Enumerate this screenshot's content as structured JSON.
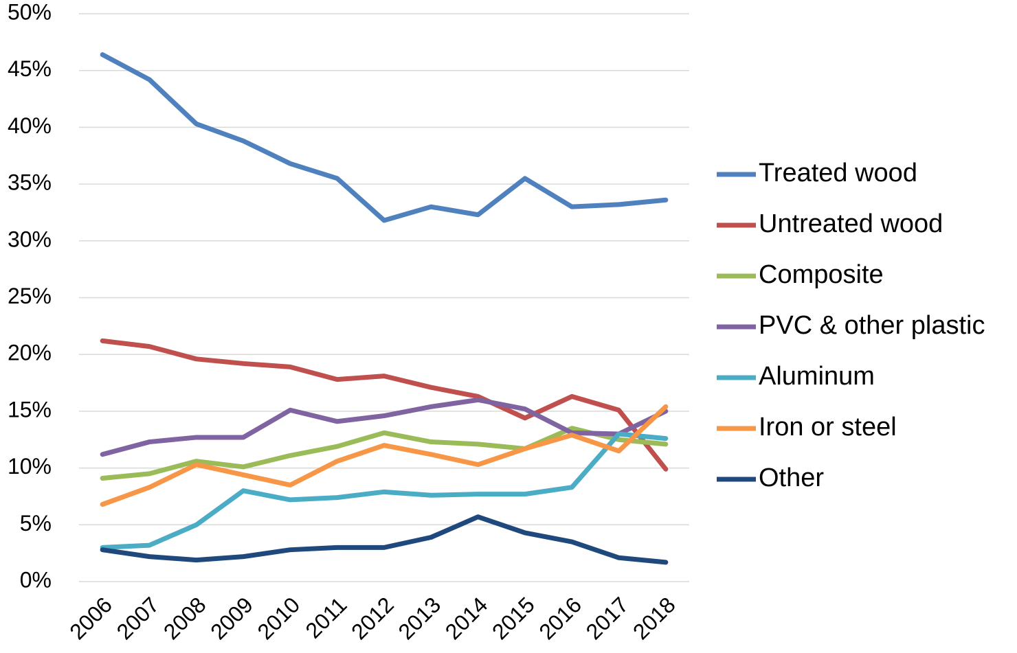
{
  "chart_data": {
    "type": "line",
    "categories": [
      "2006",
      "2007",
      "2008",
      "2009",
      "2010",
      "2011",
      "2012",
      "2013",
      "2014",
      "2015",
      "2016",
      "2017",
      "2018"
    ],
    "series": [
      {
        "name": "Treated wood",
        "color": "#4e81bd",
        "values": [
          46.4,
          44.2,
          40.3,
          38.8,
          36.8,
          35.5,
          31.8,
          33.0,
          32.3,
          35.5,
          33.0,
          33.2,
          33.6
        ]
      },
      {
        "name": "Untreated wood",
        "color": "#c0504d",
        "values": [
          21.2,
          20.7,
          19.6,
          19.2,
          18.9,
          17.8,
          18.1,
          17.1,
          16.3,
          14.4,
          16.3,
          15.1,
          9.9
        ]
      },
      {
        "name": "Composite",
        "color": "#9bbb59",
        "values": [
          9.1,
          9.5,
          10.6,
          10.1,
          11.1,
          11.9,
          13.1,
          12.3,
          12.1,
          11.7,
          13.5,
          12.5,
          12.1
        ]
      },
      {
        "name": "PVC & other plastic",
        "color": "#8064a2",
        "values": [
          11.2,
          12.3,
          12.7,
          12.7,
          15.1,
          14.1,
          14.6,
          15.4,
          16.0,
          15.2,
          13.1,
          13.0,
          15.0
        ]
      },
      {
        "name": "Aluminum",
        "color": "#4bacc6",
        "values": [
          3.0,
          3.2,
          5.0,
          8.0,
          7.2,
          7.4,
          7.9,
          7.6,
          7.7,
          7.7,
          8.3,
          13.0,
          12.6
        ]
      },
      {
        "name": "Iron or steel",
        "color": "#f79646",
        "values": [
          6.8,
          8.3,
          10.3,
          9.4,
          8.5,
          10.6,
          12.0,
          11.2,
          10.3,
          11.7,
          12.9,
          11.5,
          15.4
        ]
      },
      {
        "name": "Other",
        "color": "#1f497d",
        "values": [
          2.8,
          2.2,
          1.9,
          2.2,
          2.8,
          3.0,
          3.0,
          3.9,
          5.7,
          4.3,
          3.5,
          2.1,
          1.7
        ]
      }
    ],
    "ylim": [
      0,
      50
    ],
    "yticks": [
      {
        "value": 0,
        "label": "0%"
      },
      {
        "value": 5,
        "label": "5%"
      },
      {
        "value": 10,
        "label": "10%"
      },
      {
        "value": 15,
        "label": "15%"
      },
      {
        "value": 20,
        "label": "20%"
      },
      {
        "value": 25,
        "label": "25%"
      },
      {
        "value": 30,
        "label": "30%"
      },
      {
        "value": 35,
        "label": "35%"
      },
      {
        "value": 40,
        "label": "40%"
      },
      {
        "value": 45,
        "label": "45%"
      },
      {
        "value": 50,
        "label": "50%"
      }
    ],
    "grid": true,
    "legend": "right"
  }
}
